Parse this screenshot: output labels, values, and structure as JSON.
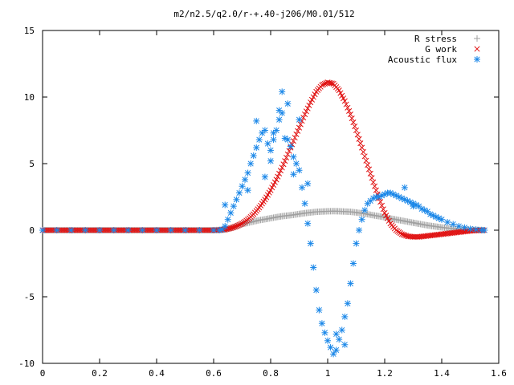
{
  "chart_data": {
    "type": "scatter",
    "title": "m2/n2.5/q2.0/r-+.40-j206/M0.01/512",
    "xlabel": "",
    "ylabel": "",
    "xlim": [
      0,
      1.6
    ],
    "ylim": [
      -10,
      15
    ],
    "x_ticks": [
      "0",
      "0.2",
      "0.4",
      "0.6",
      "0.8",
      "1",
      "1.2",
      "1.4",
      "1.6"
    ],
    "y_ticks": [
      "-10",
      "-5",
      "0",
      "5",
      "10",
      "15"
    ],
    "grid": false,
    "legend_position": "top-right",
    "series": [
      {
        "name": "R stress",
        "marker": "plus",
        "color": "#a0a0a0",
        "x": [
          0.0,
          0.05,
          0.1,
          0.15,
          0.2,
          0.25,
          0.3,
          0.35,
          0.4,
          0.45,
          0.5,
          0.55,
          0.6,
          0.62,
          0.64,
          0.66,
          0.68,
          0.7,
          0.72,
          0.74,
          0.76,
          0.78,
          0.8,
          0.82,
          0.84,
          0.86,
          0.88,
          0.9,
          0.92,
          0.94,
          0.96,
          0.98,
          1.0,
          1.02,
          1.04,
          1.06,
          1.08,
          1.1,
          1.12,
          1.14,
          1.16,
          1.18,
          1.2,
          1.22,
          1.24,
          1.26,
          1.28,
          1.3,
          1.32,
          1.34,
          1.36,
          1.38,
          1.4,
          1.42,
          1.44,
          1.46,
          1.48,
          1.5,
          1.52,
          1.54,
          1.55
        ],
        "y": [
          0,
          0,
          0,
          0,
          0,
          0,
          0,
          0,
          0,
          0,
          0,
          0,
          0,
          0.02,
          0.05,
          0.15,
          0.3,
          0.45,
          0.55,
          0.65,
          0.75,
          0.82,
          0.9,
          0.98,
          1.05,
          1.1,
          1.15,
          1.22,
          1.28,
          1.33,
          1.38,
          1.4,
          1.42,
          1.43,
          1.42,
          1.4,
          1.38,
          1.33,
          1.27,
          1.2,
          1.12,
          1.05,
          0.97,
          0.88,
          0.8,
          0.72,
          0.64,
          0.56,
          0.48,
          0.4,
          0.33,
          0.27,
          0.21,
          0.16,
          0.12,
          0.08,
          0.05,
          0.03,
          0.02,
          0.01,
          0
        ]
      },
      {
        "name": "G work",
        "marker": "cross",
        "color": "#e01010",
        "x": [
          0.0,
          0.05,
          0.1,
          0.15,
          0.2,
          0.25,
          0.3,
          0.35,
          0.4,
          0.45,
          0.5,
          0.55,
          0.6,
          0.62,
          0.64,
          0.66,
          0.68,
          0.7,
          0.72,
          0.74,
          0.76,
          0.78,
          0.8,
          0.82,
          0.84,
          0.86,
          0.88,
          0.9,
          0.92,
          0.94,
          0.96,
          0.98,
          1.0,
          1.02,
          1.04,
          1.06,
          1.08,
          1.1,
          1.12,
          1.14,
          1.16,
          1.18,
          1.2,
          1.22,
          1.24,
          1.26,
          1.28,
          1.3,
          1.32,
          1.34,
          1.36,
          1.38,
          1.4,
          1.42,
          1.44,
          1.46,
          1.48,
          1.5,
          1.52,
          1.54,
          1.55
        ],
        "y": [
          0,
          0,
          0,
          0,
          0,
          0,
          0,
          0,
          0,
          0,
          0,
          0,
          0,
          0.01,
          0.05,
          0.15,
          0.3,
          0.5,
          0.8,
          1.2,
          1.7,
          2.3,
          3.0,
          3.8,
          4.7,
          5.7,
          6.7,
          7.7,
          8.7,
          9.6,
          10.4,
          10.9,
          11.1,
          11.0,
          10.5,
          9.7,
          8.7,
          7.5,
          6.2,
          4.9,
          3.6,
          2.4,
          1.3,
          0.5,
          0,
          -0.3,
          -0.45,
          -0.5,
          -0.5,
          -0.45,
          -0.4,
          -0.35,
          -0.3,
          -0.25,
          -0.2,
          -0.15,
          -0.1,
          -0.05,
          -0.02,
          0,
          0
        ]
      },
      {
        "name": "Acoustic flux",
        "marker": "star",
        "color": "#1a87e8",
        "x": [
          0.0,
          0.05,
          0.1,
          0.15,
          0.2,
          0.25,
          0.3,
          0.35,
          0.4,
          0.45,
          0.5,
          0.55,
          0.6,
          0.62,
          0.63,
          0.64,
          0.65,
          0.66,
          0.67,
          0.68,
          0.69,
          0.7,
          0.71,
          0.72,
          0.73,
          0.74,
          0.75,
          0.76,
          0.77,
          0.78,
          0.79,
          0.8,
          0.81,
          0.82,
          0.83,
          0.84,
          0.85,
          0.86,
          0.87,
          0.88,
          0.89,
          0.9,
          0.91,
          0.92,
          0.93,
          0.94,
          0.95,
          0.96,
          0.97,
          0.98,
          0.99,
          1.0,
          1.01,
          1.02,
          1.03,
          1.04,
          1.05,
          1.06,
          1.07,
          1.08,
          1.09,
          1.1,
          1.11,
          1.12,
          1.13,
          1.14,
          1.15,
          1.16,
          1.17,
          1.18,
          1.19,
          1.2,
          1.21,
          1.22,
          1.23,
          1.24,
          1.25,
          1.26,
          1.27,
          1.28,
          1.29,
          1.3,
          1.31,
          1.32,
          1.33,
          1.34,
          1.35,
          1.36,
          1.37,
          1.38,
          1.39,
          1.4,
          1.42,
          1.44,
          1.46,
          1.48,
          1.5,
          1.52,
          1.54,
          1.55,
          0.75,
          0.78,
          0.81,
          0.84,
          0.86,
          0.88,
          0.72,
          0.8,
          0.83,
          0.9,
          0.93,
          1.03,
          1.06,
          1.27,
          1.3,
          0.64
        ],
        "y": [
          0,
          0,
          0,
          0,
          0,
          0,
          0,
          0,
          0,
          0,
          0,
          0,
          0,
          0,
          0.05,
          0.3,
          0.8,
          1.3,
          1.8,
          2.3,
          2.8,
          3.3,
          3.8,
          4.3,
          5.0,
          5.6,
          6.2,
          6.8,
          7.3,
          7.5,
          6.5,
          5.2,
          6.8,
          7.5,
          8.3,
          8.8,
          6.9,
          6.8,
          6.3,
          5.5,
          5.0,
          4.5,
          3.2,
          2.0,
          0.5,
          -1.0,
          -2.8,
          -4.5,
          -6.0,
          -7.0,
          -7.7,
          -8.3,
          -8.8,
          -9.3,
          -9.0,
          -8.2,
          -7.5,
          -6.5,
          -5.5,
          -4.0,
          -2.5,
          -1.0,
          0,
          0.8,
          1.5,
          2.0,
          2.2,
          2.4,
          2.5,
          2.5,
          2.6,
          2.7,
          2.8,
          2.8,
          2.7,
          2.6,
          2.5,
          2.4,
          2.3,
          2.2,
          2.1,
          2.0,
          1.9,
          1.8,
          1.6,
          1.5,
          1.4,
          1.2,
          1.1,
          1.0,
          0.9,
          0.8,
          0.6,
          0.45,
          0.3,
          0.2,
          0.1,
          0.05,
          0.01,
          0,
          8.2,
          4.0,
          7.3,
          10.4,
          9.5,
          4.2,
          3.0,
          6.0,
          9.0,
          8.3,
          3.5,
          -7.8,
          -8.6,
          3.2,
          1.8,
          1.9
        ]
      }
    ]
  }
}
